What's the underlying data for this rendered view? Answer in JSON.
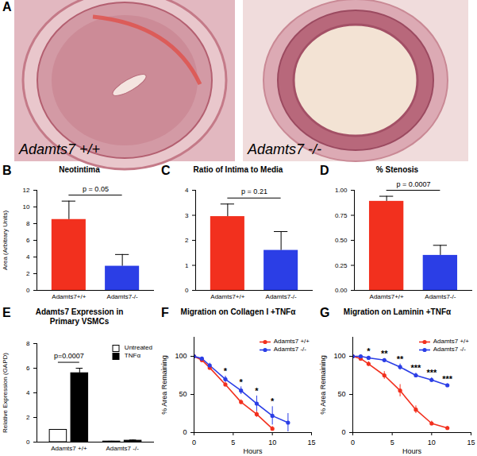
{
  "image_panel": {
    "label": "A",
    "images": [
      {
        "caption": "Adamts7 +/+"
      },
      {
        "caption": "Adamts7 -/-"
      }
    ]
  },
  "chart_data": [
    {
      "panel": "B",
      "type": "bar",
      "title": "Neotintima",
      "y_label": "Area (Arbitrary Units)",
      "categories": [
        "Adamts7+/+",
        "Adamts7-/-"
      ],
      "values": [
        8.5,
        2.9
      ],
      "errors": [
        2.2,
        1.4
      ],
      "colors": [
        "#f2301e",
        "#2b3ee6"
      ],
      "ylim": [
        0,
        12
      ],
      "yticks": [
        0,
        2,
        4,
        6,
        8,
        10,
        12
      ],
      "annotations": [
        {
          "text": "p = 0.05"
        }
      ]
    },
    {
      "panel": "C",
      "type": "bar",
      "title": "Ratio of Intima to Media",
      "categories": [
        "Adamts7+/+",
        "Adamts7-/-"
      ],
      "values": [
        2.95,
        1.6
      ],
      "errors": [
        0.5,
        0.75
      ],
      "colors": [
        "#f2301e",
        "#2b3ee6"
      ],
      "ylim": [
        0,
        4
      ],
      "yticks": [
        0,
        1,
        2,
        3,
        4
      ],
      "annotations": [
        {
          "text": "p = 0.21"
        }
      ]
    },
    {
      "panel": "D",
      "type": "bar",
      "title": "% Stenosis",
      "categories": [
        "Adamts7+/+",
        "Adamts7-/-"
      ],
      "values": [
        0.89,
        0.35
      ],
      "errors": [
        0.05,
        0.1
      ],
      "colors": [
        "#f2301e",
        "#2b3ee6"
      ],
      "ylim": [
        0,
        1
      ],
      "yticks": [
        {
          "value": 0,
          "label": "0.00"
        },
        {
          "value": 0.25,
          "label": "0.25"
        },
        {
          "value": 0.5,
          "label": "0.50"
        },
        {
          "value": 0.75,
          "label": "0.75"
        },
        {
          "value": 1,
          "label": "1.00"
        }
      ],
      "annotations": [
        {
          "text": "p = 0.0007"
        }
      ]
    },
    {
      "panel": "E",
      "type": "bar",
      "title": "Adamts7 Expression in Primary VSMCs",
      "y_label": "Relative Expression (GAPD)",
      "categories": [
        "Adamts7 +/+",
        "Adamts7 -/-"
      ],
      "series": [
        {
          "name": "Untreated",
          "color": "#ffffff",
          "values": [
            1,
            0.05
          ],
          "errors": [
            0,
            0.02
          ]
        },
        {
          "name": "TNFα",
          "color": "#000000",
          "values": [
            5.6,
            0.12
          ],
          "errors": [
            0.4,
            0.05
          ]
        }
      ],
      "ylim": [
        0,
        8
      ],
      "yticks": [
        0,
        2,
        4,
        6,
        8
      ],
      "legend": "top-right",
      "annotations": [
        {
          "text": "p=0.0007",
          "category": 0
        }
      ]
    },
    {
      "panel": "F",
      "type": "line",
      "title": "Migration on Collagen I +TNFα",
      "x_label": "Hours",
      "y_label": "% Area Remaining",
      "x": [
        0,
        1,
        2,
        4,
        6,
        8,
        10,
        12
      ],
      "series": [
        {
          "name": "Adamts7 +/+",
          "color": "#f2301e",
          "values": [
            100,
            95,
            85,
            63,
            40,
            24,
            5,
            null
          ],
          "errors": [
            0,
            2,
            3,
            3,
            3,
            4,
            3,
            null
          ]
        },
        {
          "name": "Adamts7 -/-",
          "color": "#2b3ee6",
          "values": [
            100,
            97,
            88,
            70,
            55,
            38,
            22,
            13
          ],
          "errors": [
            0,
            2,
            3,
            4,
            5,
            10,
            12,
            12
          ]
        }
      ],
      "xlim": [
        0,
        15
      ],
      "xticks": [
        0,
        5,
        10,
        15
      ],
      "ylim": [
        0,
        125
      ],
      "yticks": [
        0,
        50,
        100
      ],
      "legend": "top-right",
      "annotations": [
        {
          "x": 4,
          "text": "*"
        },
        {
          "x": 6,
          "text": "*"
        },
        {
          "x": 8,
          "text": "*"
        },
        {
          "x": 10,
          "text": "*"
        }
      ]
    },
    {
      "panel": "G",
      "type": "line",
      "title": "Migration on Laminin +TNFα",
      "x_label": "Hours",
      "y_label": "% Area Remaining",
      "x": [
        0,
        1,
        2,
        4,
        6,
        8,
        10,
        12
      ],
      "series": [
        {
          "name": "Adamts7 +/+",
          "color": "#f2301e",
          "values": [
            100,
            97,
            90,
            75,
            55,
            30,
            12,
            6
          ],
          "errors": [
            0,
            2,
            3,
            5,
            8,
            5,
            3,
            2
          ]
        },
        {
          "name": "Adamts7 -/-",
          "color": "#2b3ee6",
          "values": [
            100,
            100,
            98,
            95,
            86,
            75,
            69,
            62
          ],
          "errors": [
            0,
            1,
            2,
            2,
            4,
            3,
            3,
            2
          ]
        }
      ],
      "xlim": [
        0,
        15
      ],
      "xticks": [
        0,
        5,
        10,
        15
      ],
      "ylim": [
        0,
        125
      ],
      "yticks": [
        0,
        50,
        100
      ],
      "legend": "top-right",
      "annotations": [
        {
          "x": 2,
          "text": "*"
        },
        {
          "x": 4,
          "text": "**"
        },
        {
          "x": 6,
          "text": "**"
        },
        {
          "x": 8,
          "text": "***"
        },
        {
          "x": 10,
          "text": "***"
        },
        {
          "x": 12,
          "text": "***"
        }
      ]
    }
  ]
}
